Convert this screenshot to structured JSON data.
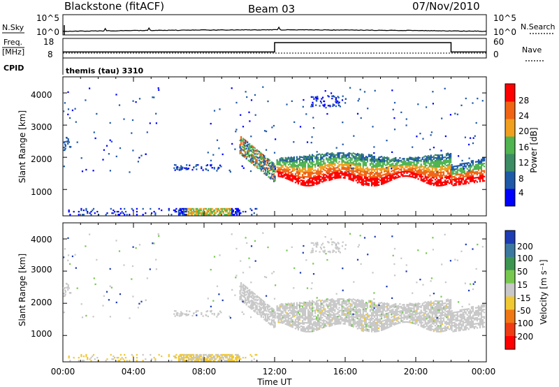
{
  "header": {
    "station": "Blackstone (fitACF)",
    "beam": "Beam 03",
    "date": "07/Nov/2010"
  },
  "noise_panel": {
    "left_label": "N.Sky",
    "right_label": "N.Search",
    "left_ticks": [
      "10^5",
      "10^0"
    ],
    "right_ticks": [
      "10^5",
      "10^0"
    ]
  },
  "freq_panel": {
    "left_label_line1": "Freq.",
    "left_label_line2": "[MHz]",
    "right_label": "Nave",
    "left_ticks": [
      "18",
      "8"
    ],
    "right_ticks": [
      "60",
      "0"
    ],
    "cpid_label": "CPID",
    "cpid_text": "themis (tau) 3310"
  },
  "time_axis": {
    "ticks": [
      "00:00",
      "04:00",
      "08:00",
      "12:00",
      "16:00",
      "20:00",
      "00:00"
    ],
    "label": "Time UT"
  },
  "power_panel": {
    "ylabel": "Slant Range [km]",
    "yticks": [
      "1000",
      "2000",
      "3000",
      "4000"
    ],
    "colorbar_label": "Power [dB]",
    "colorbar_ticks": [
      "4",
      "8",
      "12",
      "16",
      "20",
      "24",
      "28"
    ],
    "colors": [
      "#0000ff",
      "#1e5aa8",
      "#3c8c64",
      "#50b450",
      "#f0a01e",
      "#f06414",
      "#ff0000"
    ]
  },
  "velocity_panel": {
    "ylabel": "Slant Range [km]",
    "yticks": [
      "1000",
      "2000",
      "3000",
      "4000"
    ],
    "colorbar_label": "Velocity [m s⁻¹]",
    "colorbar_ticks": [
      "200",
      "100",
      "50",
      "15",
      "-15",
      "-50",
      "-100",
      "-200"
    ],
    "colors": [
      "#1e3cb4",
      "#3c78a0",
      "#3c9650",
      "#78c850",
      "#c8c8c8",
      "#f0c832",
      "#f07814",
      "#f03c14",
      "#ff0000"
    ]
  },
  "chart_data": {
    "type": "heatmap",
    "x_range_hours": [
      0,
      24
    ],
    "y_range_km": [
      180,
      4500
    ],
    "noise_level": "near 10^0, slight rise mid-day",
    "frequency_mhz": [
      {
        "from_ut": "00:00",
        "to_ut": "12:00",
        "value": 10.5
      },
      {
        "from_ut": "12:00",
        "to_ut": "22:00",
        "value": 16.5
      },
      {
        "from_ut": "22:00",
        "to_ut": "24:00",
        "value": 10.5
      }
    ],
    "echo_regions": [
      {
        "from_ut": "10:00",
        "to_ut": "12:00",
        "range_km": [
          1300,
          2500
        ],
        "power_db": 20,
        "velocity": "-15 to 15"
      },
      {
        "from_ut": "12:00",
        "to_ut": "22:00",
        "range_km": [
          1200,
          2000
        ],
        "power_db": 24,
        "velocity": "-15 to 15"
      },
      {
        "from_ut": "22:00",
        "to_ut": "24:00",
        "range_km": [
          1100,
          1900
        ],
        "power_db": 26,
        "velocity": "-15 to 15"
      },
      {
        "from_ut": "06:00",
        "to_ut": "10:00",
        "range_km": [
          200,
          400
        ],
        "power_db": 16,
        "velocity": "-15 to -50"
      },
      {
        "from_ut": "14:00",
        "to_ut": "16:00",
        "range_km": [
          3600,
          3900
        ],
        "power_db": 6,
        "velocity": "mixed"
      }
    ]
  }
}
